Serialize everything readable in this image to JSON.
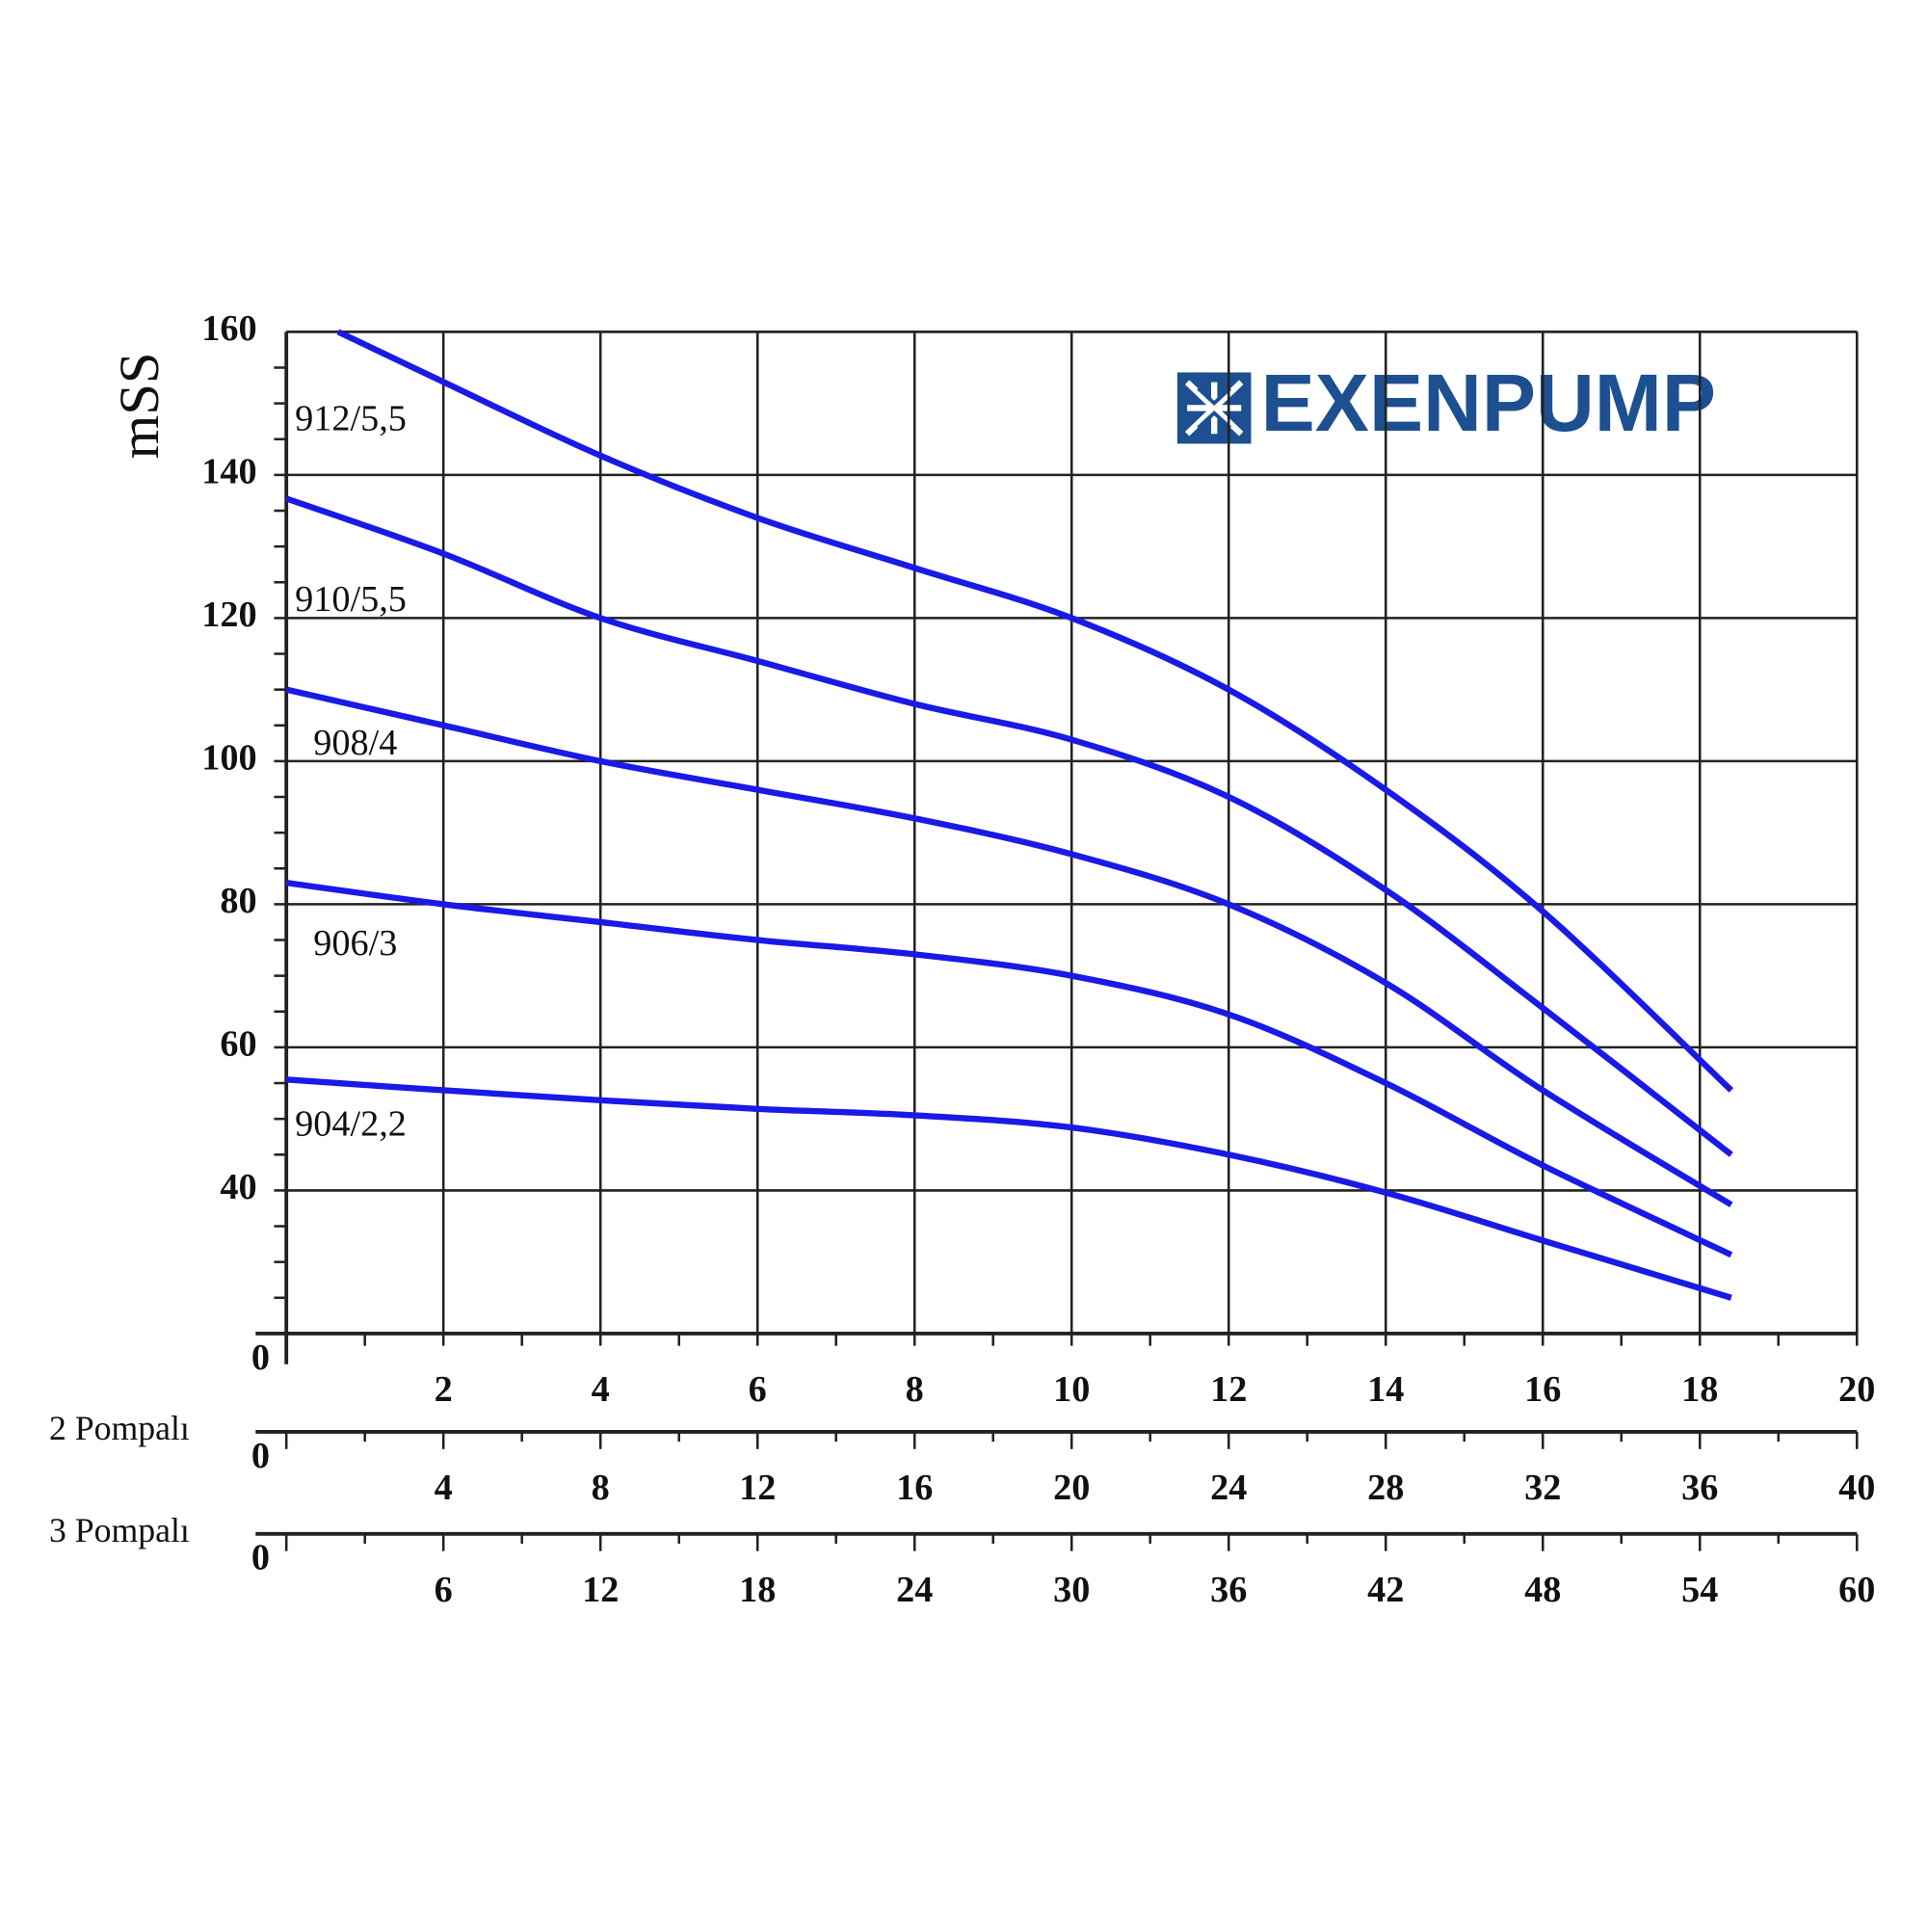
{
  "chart_data": {
    "type": "line",
    "y_label": "mSS",
    "logo": "EXENPUMP",
    "xlim": [
      0,
      20
    ],
    "xticks": [
      0,
      2,
      4,
      6,
      8,
      10,
      12,
      14,
      16,
      18,
      20
    ],
    "ylim": [
      20,
      160
    ],
    "yticks": [
      40,
      60,
      80,
      100,
      120,
      140,
      160
    ],
    "grid": true,
    "secondary_x_axes": [
      {
        "label": "2 Pompalı",
        "xlim": [
          0,
          40
        ],
        "xticks": [
          0,
          4,
          8,
          12,
          16,
          20,
          24,
          28,
          32,
          36,
          40
        ]
      },
      {
        "label": "3 Pompalı",
        "xlim": [
          0,
          60
        ],
        "xticks": [
          0,
          6,
          12,
          18,
          24,
          30,
          36,
          42,
          48,
          54,
          60
        ]
      }
    ],
    "series": [
      {
        "name": "912/5,5",
        "color": "#1a1ae6",
        "x": [
          0.66,
          2,
          4,
          6,
          8,
          10,
          12,
          14,
          16,
          18.4
        ],
        "values": [
          160,
          153,
          142.7,
          134,
          127,
          120,
          110,
          96,
          79,
          54
        ]
      },
      {
        "name": "910/5,5",
        "color": "#1a1ae6",
        "x": [
          0,
          2,
          4,
          6,
          8,
          10,
          12,
          14,
          16,
          18.4
        ],
        "values": [
          136.7,
          129,
          120,
          114,
          108,
          103,
          95,
          82,
          65.5,
          45
        ]
      },
      {
        "name": "908/4",
        "color": "#1a1ae6",
        "x": [
          0,
          2,
          4,
          6,
          8,
          10,
          12,
          14,
          16,
          18.4
        ],
        "values": [
          110,
          105,
          100,
          96,
          92,
          87,
          80,
          69,
          54,
          38
        ]
      },
      {
        "name": "906/3",
        "color": "#1a1ae6",
        "x": [
          0,
          2,
          4,
          6,
          8,
          10,
          12,
          14,
          16,
          18.4
        ],
        "values": [
          83,
          80,
          77.5,
          75,
          73,
          70,
          64.6,
          55,
          43.5,
          31
        ]
      },
      {
        "name": "904/2,2",
        "color": "#1a1ae6",
        "x": [
          0,
          2,
          4,
          6,
          8,
          10,
          12,
          14,
          16,
          18.4
        ],
        "values": [
          55.5,
          54,
          52.6,
          51.4,
          50.5,
          48.8,
          45,
          39.7,
          33,
          25
        ]
      }
    ]
  }
}
